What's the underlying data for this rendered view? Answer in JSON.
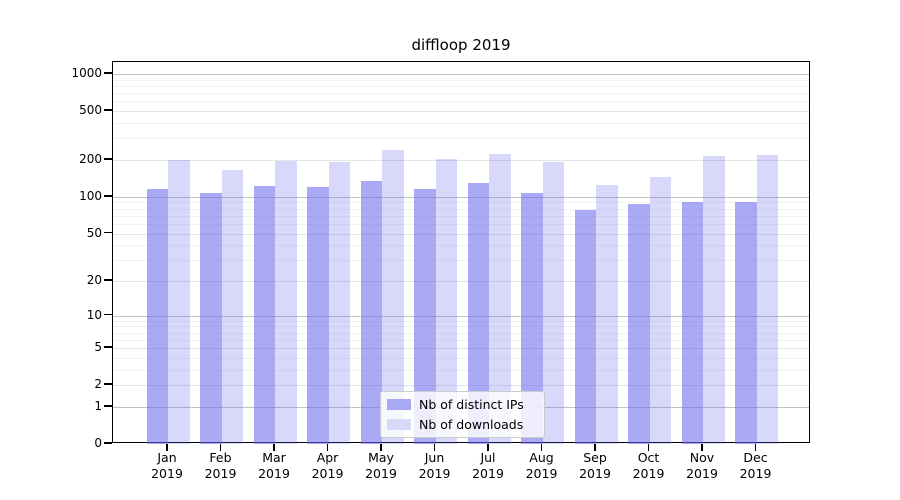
{
  "title": "diffloop 2019",
  "legend": {
    "items": [
      {
        "label": "Nb of distinct IPs",
        "color": "#a8a8f3"
      },
      {
        "label": "Nb of downloads",
        "color": "#d8d8f8"
      }
    ]
  },
  "colors": {
    "bar_ips": "rgba(103,103,238,0.57)",
    "bar_downloads": "rgba(103,103,238,0.26)",
    "grid_decade": "#c3c3c3",
    "grid_mid": "#e4e4e4",
    "grid_minor": "#f2f2f2",
    "axis": "#000000"
  },
  "chart_data": {
    "type": "bar",
    "title": "diffloop 2019",
    "categories": [
      "Jan",
      "Feb",
      "Mar",
      "Apr",
      "May",
      "Jun",
      "Jul",
      "Aug",
      "Sep",
      "Oct",
      "Nov",
      "Dec"
    ],
    "xtick_second_line": "2019",
    "series": [
      {
        "name": "Nb of distinct IPs",
        "values": [
          115,
          108,
          122,
          120,
          134,
          117,
          130,
          107,
          78,
          88,
          90,
          91
        ]
      },
      {
        "name": "Nb of downloads",
        "values": [
          200,
          166,
          196,
          194,
          241,
          205,
          226,
          192,
          126,
          145,
          216,
          218
        ]
      }
    ],
    "yticks": [
      0,
      1,
      2,
      5,
      10,
      20,
      50,
      100,
      200,
      500,
      1000
    ],
    "yscale": "log1p",
    "ylim": [
      0,
      1252
    ],
    "grid": true,
    "legend_position": "lower center"
  }
}
